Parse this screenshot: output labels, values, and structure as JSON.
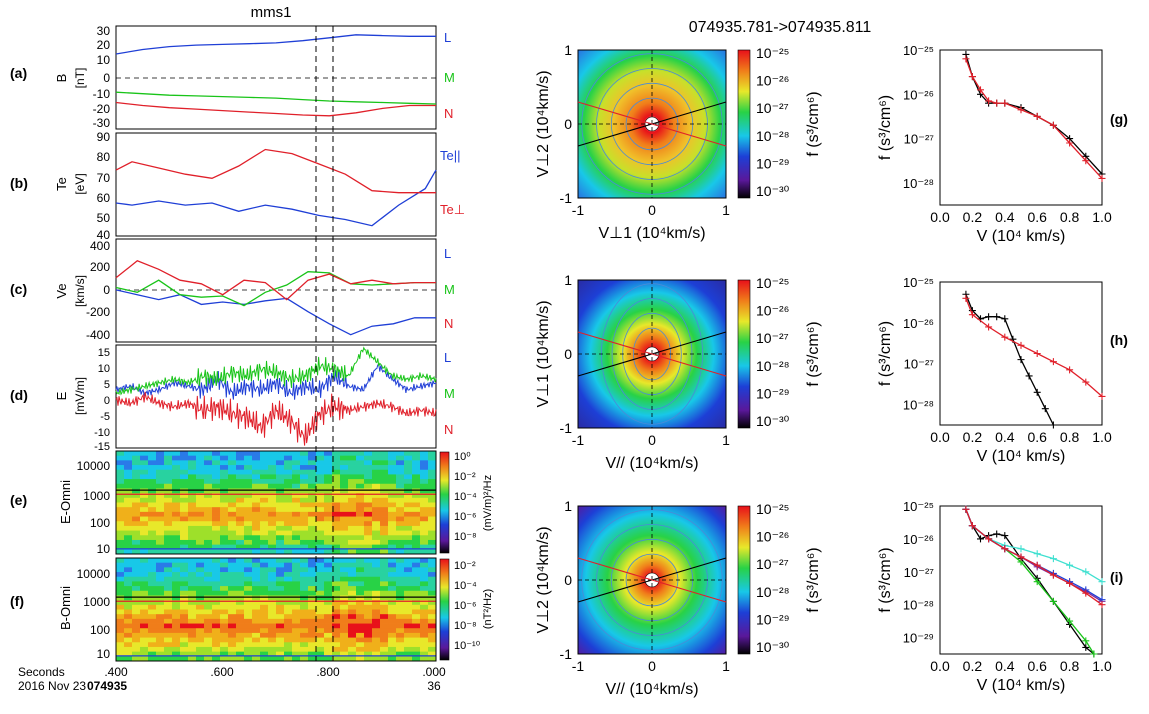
{
  "figure": {
    "left_title": "mms1",
    "right_title": "074935.781->074935.811",
    "colors": {
      "blue": "#1f3fd6",
      "green": "#19c419",
      "red": "#e0202a",
      "black": "#000000",
      "cyan": "#3fe0d0",
      "purple": "#7a2aa0"
    }
  },
  "time_axis": {
    "row1_label": "Seconds",
    "row2_label": "2016 Nov 23",
    "row2_bold": "074935",
    "ticks": [
      ".400",
      ".600",
      ".800",
      ".000"
    ],
    "end_sub": "36"
  },
  "panels": {
    "a": {
      "letter": "(a)",
      "ylabel": "B",
      "yunit": "[nT]",
      "ticks": [
        "30",
        "20",
        "10",
        "0",
        "-10",
        "-20",
        "-30"
      ],
      "legend": [
        "L",
        "M",
        "N"
      ]
    },
    "b": {
      "letter": "(b)",
      "ylabel": "Te",
      "yunit": "[eV]",
      "ticks": [
        "90",
        "80",
        "70",
        "60",
        "50",
        "40"
      ],
      "legend_par": "Te||",
      "legend_perp": "Te⊥"
    },
    "c": {
      "letter": "(c)",
      "ylabel": "Ve",
      "yunit": "[km/s]",
      "ticks": [
        "400",
        "200",
        "0",
        "-200",
        "-400"
      ],
      "legend": [
        "L",
        "M",
        "N"
      ]
    },
    "d": {
      "letter": "(d)",
      "ylabel": "E",
      "yunit": "[mV/m]",
      "ticks": [
        "15",
        "10",
        "5",
        "0",
        "-5",
        "-10",
        "-15"
      ],
      "legend": [
        "L",
        "M",
        "N"
      ]
    },
    "e": {
      "letter": "(e)",
      "ylabel": "E-Omni",
      "ticks": [
        "10000",
        "1000",
        "100",
        "10"
      ],
      "cbar_unit": "(mV/m)²/Hz",
      "cbar_ticks": [
        "10⁰",
        "10⁻²",
        "10⁻⁴",
        "10⁻⁶",
        "10⁻⁸"
      ]
    },
    "f": {
      "letter": "(f)",
      "ylabel": "B-Omni",
      "ticks": [
        "10000",
        "1000",
        "100",
        "10"
      ],
      "cbar_unit": "(nT²/Hz)",
      "cbar_ticks": [
        "10⁻²",
        "10⁻⁴",
        "10⁻⁶",
        "10⁻⁸",
        "10⁻¹⁰"
      ]
    }
  },
  "vdf": {
    "row_ylabels": [
      "V⊥2 (10⁴km/s)",
      "V⊥1 (10⁴km/s)",
      "V⊥2 (10⁴km/s)"
    ],
    "row_xlabels": [
      "V⊥1 (10⁴km/s)",
      "V// (10⁴km/s)",
      "V// (10⁴km/s)"
    ],
    "ticks": [
      "-1",
      "0",
      "1"
    ],
    "cbar_label": "f (s³/cm⁶)",
    "cbar_ticks": [
      "10⁻²⁵",
      "10⁻²⁶",
      "10⁻²⁷",
      "10⁻²⁸",
      "10⁻²⁹",
      "10⁻³⁰"
    ]
  },
  "cuts": {
    "letters": [
      "(g)",
      "(h)",
      "(i)"
    ],
    "ylabel": "f (s³/cm⁶)",
    "xlabel": "V (10⁴ km/s)",
    "xticks": [
      "0.0",
      "0.2",
      "0.4",
      "0.6",
      "0.8",
      "1.0"
    ],
    "yticks_g": [
      "10⁻²⁵",
      "10⁻²⁶",
      "10⁻²⁷",
      "10⁻²⁸"
    ],
    "yticks_h": [
      "10⁻²⁵",
      "10⁻²⁶",
      "10⁻²⁷",
      "10⁻²⁸"
    ],
    "yticks_i": [
      "10⁻²⁵",
      "10⁻²⁶",
      "10⁻²⁷",
      "10⁻²⁸",
      "10⁻²⁹"
    ]
  },
  "chart_data": [
    {
      "type": "line",
      "panel": "a",
      "xlim": [
        0.4,
        1.0
      ],
      "ylim": [
        -35,
        35
      ],
      "x": [
        0.4,
        0.45,
        0.5,
        0.55,
        0.6,
        0.65,
        0.7,
        0.75,
        0.8,
        0.85,
        0.9,
        0.95,
        1.0
      ],
      "series": [
        {
          "name": "L",
          "color": "blue",
          "values": [
            16,
            19,
            21,
            22,
            22.5,
            23,
            23.5,
            25,
            27,
            29,
            28.5,
            28,
            28
          ]
        },
        {
          "name": "M",
          "color": "green",
          "values": [
            -10,
            -11,
            -12,
            -12.5,
            -13,
            -13.5,
            -14,
            -15,
            -16,
            -16.5,
            -17,
            -17.5,
            -18
          ]
        },
        {
          "name": "N",
          "color": "red",
          "values": [
            -17,
            -19,
            -20.5,
            -21.5,
            -22.5,
            -23.5,
            -24.5,
            -25.5,
            -26,
            -24,
            -21,
            -19,
            -19
          ]
        }
      ]
    },
    {
      "type": "line",
      "panel": "b",
      "xlim": [
        0.4,
        1.0
      ],
      "ylim": [
        40,
        90
      ],
      "x": [
        0.4,
        0.43,
        0.48,
        0.53,
        0.58,
        0.63,
        0.68,
        0.73,
        0.78,
        0.83,
        0.88,
        0.93,
        0.98,
        1.0
      ],
      "series": [
        {
          "name": "Te||",
          "color": "blue",
          "values": [
            56,
            55,
            57,
            55,
            56,
            52,
            55,
            53,
            50,
            48,
            45,
            55,
            63,
            72
          ]
        },
        {
          "name": "Te⊥",
          "color": "red",
          "values": [
            72,
            76,
            73,
            70,
            68,
            74,
            82,
            80,
            75,
            70,
            62,
            61,
            61,
            61
          ]
        }
      ]
    },
    {
      "type": "line",
      "panel": "c",
      "xlim": [
        0.4,
        1.0
      ],
      "ylim": [
        -450,
        400
      ],
      "x": [
        0.4,
        0.44,
        0.48,
        0.52,
        0.56,
        0.6,
        0.64,
        0.68,
        0.72,
        0.76,
        0.8,
        0.84,
        0.88,
        0.92,
        0.96,
        1.0
      ],
      "series": [
        {
          "name": "L",
          "color": "blue",
          "values": [
            -20,
            -60,
            -100,
            -60,
            -140,
            -120,
            -140,
            -110,
            -90,
            -200,
            -300,
            -390,
            -320,
            -300,
            -250,
            -250
          ]
        },
        {
          "name": "M",
          "color": "green",
          "values": [
            0,
            -40,
            60,
            -60,
            -80,
            -70,
            -150,
            -40,
            20,
            130,
            120,
            30,
            20,
            30,
            40,
            40
          ]
        },
        {
          "name": "N",
          "color": "red",
          "values": [
            80,
            220,
            150,
            60,
            30,
            -60,
            60,
            40,
            -100,
            60,
            110,
            30,
            60,
            30,
            40,
            40
          ]
        }
      ]
    },
    {
      "type": "line",
      "panel": "d",
      "xlim": [
        0.4,
        1.0
      ],
      "ylim": [
        -15,
        15
      ],
      "series": [
        {
          "name": "L",
          "color": "blue",
          "values": [
            2,
            3,
            1,
            2,
            4,
            3,
            2,
            5,
            1,
            3,
            2,
            4,
            1,
            3,
            2,
            6,
            3,
            2,
            9,
            5,
            2,
            3,
            4
          ]
        },
        {
          "name": "M",
          "color": "green",
          "values": [
            1,
            2,
            3,
            4,
            5,
            4,
            6,
            5,
            7,
            6,
            8,
            7,
            5,
            6,
            9,
            8,
            6,
            14,
            10,
            6,
            5,
            6,
            5
          ]
        },
        {
          "name": "N",
          "color": "red",
          "values": [
            -1,
            -2,
            0,
            -2,
            -3,
            -2,
            -4,
            -3,
            -5,
            -6,
            -9,
            -4,
            -7,
            -12,
            -5,
            -3,
            -4,
            -3,
            -2,
            -3,
            -5,
            -4,
            -5
          ]
        }
      ]
    },
    {
      "type": "heatmap",
      "panel": "e",
      "xlim": [
        0.4,
        1.0
      ],
      "ylim": [
        10,
        30000
      ],
      "ylog": true,
      "colorbar_range": [
        "1e-8",
        "1e0"
      ]
    },
    {
      "type": "heatmap",
      "panel": "f",
      "xlim": [
        0.4,
        1.0
      ],
      "ylim": [
        10,
        10000
      ],
      "ylog": true,
      "colorbar_range": [
        "1e-10",
        "1e-2"
      ]
    },
    {
      "type": "heatmap",
      "panel": "vdf-1",
      "xlim": [
        -1,
        1
      ],
      "ylim": [
        -1,
        1
      ],
      "colorbar_range": [
        "1e-30",
        "1e-25"
      ]
    },
    {
      "type": "heatmap",
      "panel": "vdf-2",
      "xlim": [
        -1,
        1
      ],
      "ylim": [
        -1,
        1
      ],
      "colorbar_range": [
        "1e-30",
        "1e-25"
      ]
    },
    {
      "type": "heatmap",
      "panel": "vdf-3",
      "xlim": [
        -1,
        1
      ],
      "ylim": [
        -1,
        1
      ],
      "colorbar_range": [
        "1e-30",
        "1e-25"
      ]
    },
    {
      "type": "line",
      "panel": "g",
      "xlim": [
        0.0,
        1.0
      ],
      "ylim": [
        -28.5,
        -25
      ],
      "ylog": true,
      "series": [
        {
          "color": "black",
          "x": [
            0.16,
            0.2,
            0.25,
            0.3,
            0.35,
            0.4,
            0.5,
            0.6,
            0.7,
            0.8,
            0.9,
            1.0
          ],
          "values": [
            -25.1,
            -25.6,
            -26.0,
            -26.2,
            -26.2,
            -26.2,
            -26.3,
            -26.5,
            -26.7,
            -27.0,
            -27.4,
            -27.8
          ]
        },
        {
          "color": "red",
          "x": [
            0.16,
            0.2,
            0.25,
            0.3,
            0.35,
            0.4,
            0.5,
            0.6,
            0.7,
            0.8,
            0.9,
            1.0
          ],
          "values": [
            -25.2,
            -25.6,
            -25.9,
            -26.15,
            -26.2,
            -26.2,
            -26.35,
            -26.5,
            -26.7,
            -27.1,
            -27.5,
            -27.9
          ]
        }
      ]
    },
    {
      "type": "line",
      "panel": "h",
      "xlim": [
        0.0,
        1.0
      ],
      "ylim": [
        -28.5,
        -25
      ],
      "ylog": true,
      "series": [
        {
          "color": "black",
          "x": [
            0.16,
            0.2,
            0.25,
            0.3,
            0.35,
            0.4,
            0.45,
            0.5,
            0.55,
            0.6,
            0.65,
            0.7
          ],
          "values": [
            -25.3,
            -25.7,
            -25.9,
            -25.85,
            -25.85,
            -25.9,
            -26.4,
            -26.9,
            -27.3,
            -27.7,
            -28.1,
            -28.5
          ]
        },
        {
          "color": "red",
          "x": [
            0.16,
            0.2,
            0.3,
            0.4,
            0.5,
            0.6,
            0.7,
            0.8,
            0.9,
            1.0
          ],
          "values": [
            -25.4,
            -25.8,
            -26.1,
            -26.35,
            -26.55,
            -26.75,
            -26.95,
            -27.15,
            -27.45,
            -27.8
          ]
        }
      ]
    },
    {
      "type": "line",
      "panel": "i",
      "xlim": [
        0.0,
        1.0
      ],
      "ylim": [
        -29.5,
        -25
      ],
      "ylog": true,
      "series": [
        {
          "color": "black",
          "x": [
            0.16,
            0.2,
            0.25,
            0.3,
            0.35,
            0.4,
            0.5,
            0.6,
            0.7,
            0.8,
            0.9,
            0.95
          ],
          "values": [
            -25.1,
            -25.6,
            -26.0,
            -25.9,
            -25.85,
            -25.9,
            -26.6,
            -27.2,
            -27.9,
            -28.6,
            -29.3,
            -29.5
          ]
        },
        {
          "color": "green",
          "x": [
            0.16,
            0.2,
            0.3,
            0.4,
            0.5,
            0.6,
            0.7,
            0.8,
            0.9,
            0.95
          ],
          "values": [
            -25.1,
            -25.6,
            -26.0,
            -26.3,
            -26.7,
            -27.3,
            -27.9,
            -28.5,
            -29.1,
            -29.5
          ]
        },
        {
          "color": "cyan",
          "x": [
            0.16,
            0.2,
            0.3,
            0.4,
            0.5,
            0.6,
            0.7,
            0.8,
            0.9,
            1.0
          ],
          "values": [
            -25.1,
            -25.6,
            -26.0,
            -26.2,
            -26.3,
            -26.45,
            -26.6,
            -26.8,
            -27.0,
            -27.3
          ]
        },
        {
          "color": "purple",
          "x": [
            0.16,
            0.2,
            0.3,
            0.4,
            0.5,
            0.6,
            0.7,
            0.8,
            0.9,
            1.0
          ],
          "values": [
            -25.1,
            -25.6,
            -26.0,
            -26.3,
            -26.55,
            -26.85,
            -27.1,
            -27.35,
            -27.6,
            -27.9
          ]
        },
        {
          "color": "blue",
          "x": [
            0.16,
            0.2,
            0.3,
            0.4,
            0.5,
            0.6,
            0.7,
            0.8,
            0.9,
            1.0
          ],
          "values": [
            -25.1,
            -25.6,
            -26.0,
            -26.3,
            -26.55,
            -26.8,
            -27.05,
            -27.3,
            -27.55,
            -27.85
          ]
        },
        {
          "color": "red",
          "x": [
            0.16,
            0.2,
            0.3,
            0.4,
            0.5,
            0.6,
            0.7,
            0.8,
            0.9,
            1.0
          ],
          "values": [
            -25.1,
            -25.6,
            -26.0,
            -26.3,
            -26.55,
            -26.8,
            -27.1,
            -27.35,
            -27.65,
            -28.0
          ]
        }
      ]
    }
  ]
}
